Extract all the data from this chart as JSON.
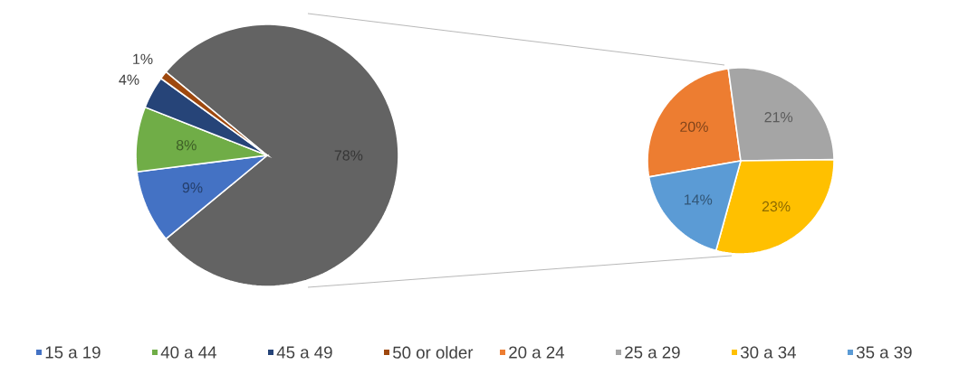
{
  "chart_data": [
    {
      "type": "pie",
      "categories": [
        null,
        "15 a 19",
        "40 a 44",
        "45 a 49",
        "50 or older"
      ],
      "values": [
        78,
        9,
        8,
        4,
        1
      ],
      "colors": [
        "#636363",
        "#4472c4",
        "#70ad47",
        "#264478",
        "#9e480e"
      ],
      "value_labels": [
        "78%",
        "9%",
        "8%",
        "4%",
        "1%"
      ],
      "legend": "bottom"
    },
    {
      "type": "pie",
      "categories": [
        "20 a 24",
        "25 a 29",
        "30 a 34",
        "35 a 39"
      ],
      "values": [
        20,
        21,
        23,
        14
      ],
      "colors": [
        "#ed7d31",
        "#a5a5a5",
        "#ffc000",
        "#5b9bd5"
      ],
      "value_labels": [
        "20%",
        "21%",
        "23%",
        "14%"
      ],
      "legend": "bottom"
    }
  ]
}
